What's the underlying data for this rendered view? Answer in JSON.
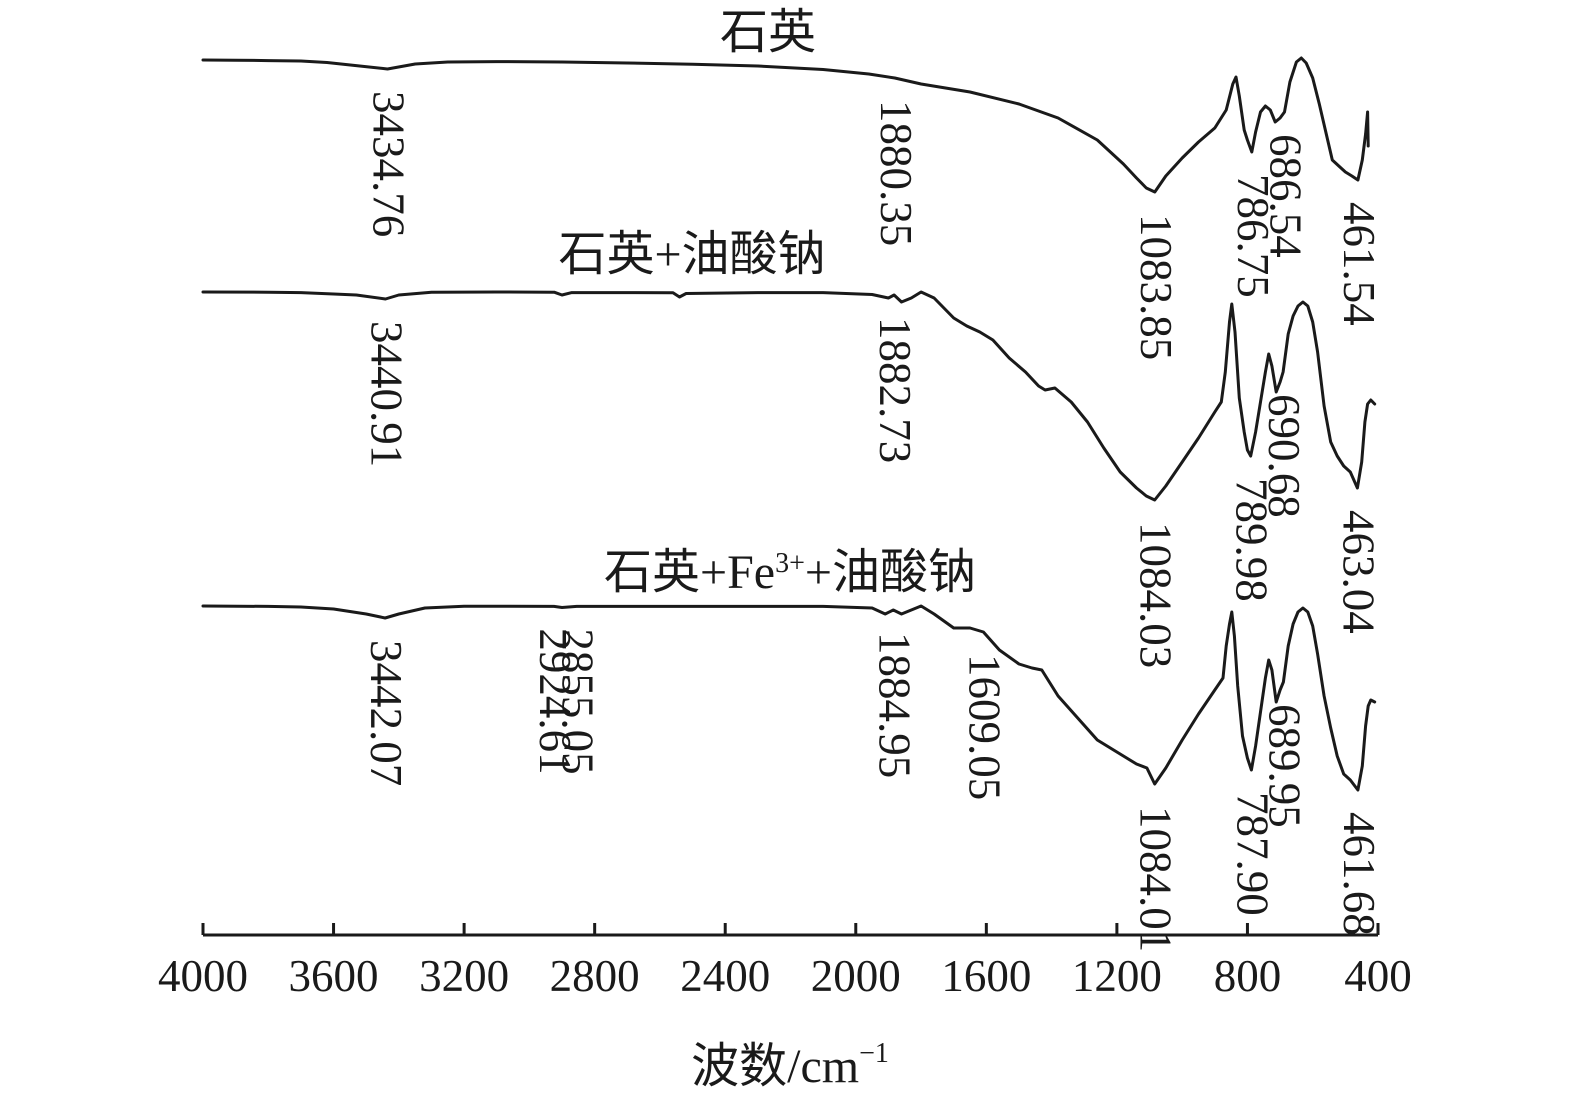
{
  "chart_data": {
    "type": "line",
    "xlabel": "波数/cm",
    "xlabel_exp": "−1",
    "xlim": [
      4000,
      400
    ],
    "x_reversed": true,
    "xticks": [
      "4000",
      "3600",
      "3200",
      "2800",
      "2400",
      "2000",
      "1600",
      "1200",
      "800",
      "400"
    ],
    "series": [
      {
        "name": "石英",
        "points": [
          [
            4000,
            0.0
          ],
          [
            3900,
            0.2
          ],
          [
            3800,
            0.6
          ],
          [
            3700,
            1.0
          ],
          [
            3620,
            2.5
          ],
          [
            3520,
            6.0
          ],
          [
            3434.76,
            9.0
          ],
          [
            3350,
            4.0
          ],
          [
            3250,
            2.0
          ],
          [
            3100,
            1.6
          ],
          [
            2900,
            2.0
          ],
          [
            2700,
            3.0
          ],
          [
            2500,
            4.2
          ],
          [
            2300,
            6.0
          ],
          [
            2100,
            9.5
          ],
          [
            1960,
            14.0
          ],
          [
            1880.35,
            18.0
          ],
          [
            1800,
            24.0
          ],
          [
            1650,
            32.0
          ],
          [
            1500,
            44.0
          ],
          [
            1380,
            58.0
          ],
          [
            1260,
            80.0
          ],
          [
            1180,
            104.0
          ],
          [
            1140,
            118.0
          ],
          [
            1110,
            128.0
          ],
          [
            1083.85,
            132.0
          ],
          [
            1050,
            116.0
          ],
          [
            1000,
            98.0
          ],
          [
            950,
            82.0
          ],
          [
            900,
            68.0
          ],
          [
            865,
            50.0
          ],
          [
            845,
            24.0
          ],
          [
            835,
            17.0
          ],
          [
            825,
            36.0
          ],
          [
            810,
            70.0
          ],
          [
            800,
            80.0
          ],
          [
            786.75,
            92.0
          ],
          [
            775,
            72.0
          ],
          [
            760,
            52.0
          ],
          [
            745,
            46.0
          ],
          [
            730,
            50.0
          ],
          [
            715,
            62.0
          ],
          [
            700,
            58.0
          ],
          [
            686.54,
            52.0
          ],
          [
            670,
            22.0
          ],
          [
            650,
            2.0
          ],
          [
            635,
            -2.0
          ],
          [
            620,
            3.0
          ],
          [
            600,
            18.0
          ],
          [
            580,
            44.0
          ],
          [
            560,
            72.0
          ],
          [
            540,
            100.0
          ],
          [
            520,
            106.0
          ],
          [
            500,
            112.0
          ],
          [
            480,
            116.0
          ],
          [
            461.54,
            120.0
          ],
          [
            448,
            100.0
          ],
          [
            438,
            74.0
          ],
          [
            432,
            52.0
          ],
          [
            430,
            86.0
          ]
        ]
      },
      {
        "name": "石英+油酸钠",
        "points": [
          [
            4000,
            0.0
          ],
          [
            3800,
            0.2
          ],
          [
            3700,
            0.6
          ],
          [
            3600,
            2.0
          ],
          [
            3530,
            3.0
          ],
          [
            3440.91,
            7.0
          ],
          [
            3400,
            3.0
          ],
          [
            3300,
            0.2
          ],
          [
            3100,
            0.0
          ],
          [
            2924,
            0.2
          ],
          [
            2900,
            3.0
          ],
          [
            2870,
            0.6
          ],
          [
            2700,
            0.6
          ],
          [
            2560,
            0.8
          ],
          [
            2540,
            5.0
          ],
          [
            2520,
            1.5
          ],
          [
            2300,
            0.6
          ],
          [
            2100,
            0.6
          ],
          [
            1950,
            2.5
          ],
          [
            1900,
            6.0
          ],
          [
            1882.73,
            3.0
          ],
          [
            1860,
            10.0
          ],
          [
            1830,
            6.0
          ],
          [
            1800,
            0.0
          ],
          [
            1760,
            6.0
          ],
          [
            1700,
            26.0
          ],
          [
            1660,
            34.0
          ],
          [
            1620,
            40.0
          ],
          [
            1580,
            48.0
          ],
          [
            1530,
            66.0
          ],
          [
            1480,
            80.0
          ],
          [
            1440,
            94.0
          ],
          [
            1420,
            98.0
          ],
          [
            1390,
            96.0
          ],
          [
            1340,
            110.0
          ],
          [
            1290,
            130.0
          ],
          [
            1240,
            156.0
          ],
          [
            1190,
            180.0
          ],
          [
            1140,
            196.0
          ],
          [
            1110,
            204.0
          ],
          [
            1084.03,
            208.0
          ],
          [
            1050,
            194.0
          ],
          [
            1000,
            170.0
          ],
          [
            950,
            146.0
          ],
          [
            900,
            120.0
          ],
          [
            880,
            110.0
          ],
          [
            868,
            80.0
          ],
          [
            855,
            30.0
          ],
          [
            848,
            12.0
          ],
          [
            838,
            40.0
          ],
          [
            825,
            106.0
          ],
          [
            810,
            140.0
          ],
          [
            800,
            158.0
          ],
          [
            789.98,
            164.0
          ],
          [
            775,
            140.0
          ],
          [
            760,
            110.0
          ],
          [
            745,
            80.0
          ],
          [
            735,
            62.0
          ],
          [
            725,
            74.0
          ],
          [
            712,
            100.0
          ],
          [
            700,
            90.0
          ],
          [
            690.68,
            80.0
          ],
          [
            675,
            42.0
          ],
          [
            660,
            24.0
          ],
          [
            645,
            14.0
          ],
          [
            630,
            10.0
          ],
          [
            615,
            14.0
          ],
          [
            600,
            30.0
          ],
          [
            585,
            60.0
          ],
          [
            565,
            114.0
          ],
          [
            545,
            150.0
          ],
          [
            525,
            164.0
          ],
          [
            505,
            174.0
          ],
          [
            485,
            180.0
          ],
          [
            463.04,
            196.0
          ],
          [
            450,
            170.0
          ],
          [
            440,
            130.0
          ],
          [
            432,
            112.0
          ],
          [
            422,
            108.0
          ],
          [
            410,
            112.0
          ]
        ]
      },
      {
        "name": "石英+Fe",
        "name_exp": "3+",
        "name_rest": "+油酸钠",
        "points": [
          [
            4000,
            0.0
          ],
          [
            3800,
            0.4
          ],
          [
            3700,
            1.0
          ],
          [
            3600,
            3.0
          ],
          [
            3500,
            8.0
          ],
          [
            3442.07,
            12.0
          ],
          [
            3400,
            8.0
          ],
          [
            3320,
            2.0
          ],
          [
            3200,
            0.2
          ],
          [
            2924.61,
            0.4
          ],
          [
            2900,
            1.5
          ],
          [
            2855.05,
            0.4
          ],
          [
            2700,
            0.4
          ],
          [
            2500,
            0.4
          ],
          [
            2300,
            0.4
          ],
          [
            2100,
            0.4
          ],
          [
            1950,
            2.0
          ],
          [
            1910,
            8.0
          ],
          [
            1884.95,
            4.0
          ],
          [
            1860,
            8.0
          ],
          [
            1830,
            4.0
          ],
          [
            1800,
            0.0
          ],
          [
            1760,
            8.0
          ],
          [
            1700,
            22.0
          ],
          [
            1650,
            22.0
          ],
          [
            1609.05,
            26.0
          ],
          [
            1560,
            44.0
          ],
          [
            1500,
            58.0
          ],
          [
            1460,
            62.0
          ],
          [
            1430,
            64.0
          ],
          [
            1380,
            90.0
          ],
          [
            1320,
            112.0
          ],
          [
            1260,
            134.0
          ],
          [
            1210,
            144.0
          ],
          [
            1180,
            150.0
          ],
          [
            1140,
            158.0
          ],
          [
            1108,
            162.0
          ],
          [
            1084.01,
            178.0
          ],
          [
            1050,
            162.0
          ],
          [
            1000,
            134.0
          ],
          [
            950,
            108.0
          ],
          [
            900,
            84.0
          ],
          [
            875,
            72.0
          ],
          [
            865,
            40.0
          ],
          [
            855,
            18.0
          ],
          [
            848,
            6.0
          ],
          [
            840,
            30.0
          ],
          [
            830,
            80.0
          ],
          [
            815,
            130.0
          ],
          [
            800,
            152.0
          ],
          [
            787.9,
            164.0
          ],
          [
            775,
            140.0
          ],
          [
            760,
            106.0
          ],
          [
            745,
            72.0
          ],
          [
            735,
            54.0
          ],
          [
            725,
            64.0
          ],
          [
            712,
            96.0
          ],
          [
            700,
            84.0
          ],
          [
            689.95,
            76.0
          ],
          [
            675,
            40.0
          ],
          [
            660,
            18.0
          ],
          [
            645,
            6.0
          ],
          [
            630,
            2.0
          ],
          [
            615,
            6.0
          ],
          [
            600,
            20.0
          ],
          [
            585,
            48.0
          ],
          [
            565,
            90.0
          ],
          [
            545,
            122.0
          ],
          [
            525,
            150.0
          ],
          [
            505,
            168.0
          ],
          [
            485,
            174.0
          ],
          [
            461.68,
            184.0
          ],
          [
            448,
            160.0
          ],
          [
            438,
            120.0
          ],
          [
            430,
            100.0
          ],
          [
            422,
            94.0
          ],
          [
            410,
            96.0
          ]
        ]
      }
    ],
    "peak_labels": [
      {
        "series": 0,
        "text": "3434.76",
        "x": 3434.76
      },
      {
        "series": 0,
        "text": "1880.35",
        "x": 1880.35
      },
      {
        "series": 0,
        "text": "1083.85",
        "x": 1083.85
      },
      {
        "series": 0,
        "text": "786.75",
        "x": 786.75
      },
      {
        "series": 0,
        "text": "686.54",
        "x": 686.54
      },
      {
        "series": 0,
        "text": "461.54",
        "x": 461.54
      },
      {
        "series": 1,
        "text": "3440.91",
        "x": 3440.91
      },
      {
        "series": 1,
        "text": "1882.73",
        "x": 1882.73
      },
      {
        "series": 1,
        "text": "1084.03",
        "x": 1084.03
      },
      {
        "series": 1,
        "text": "789.98",
        "x": 789.98
      },
      {
        "series": 1,
        "text": "690.68",
        "x": 690.68
      },
      {
        "series": 1,
        "text": "463.04",
        "x": 463.04
      },
      {
        "series": 2,
        "text": "3442.07",
        "x": 3442.07
      },
      {
        "series": 2,
        "text": "2924.61",
        "x": 2924.61
      },
      {
        "series": 2,
        "text": "2855.05",
        "x": 2855.05
      },
      {
        "series": 2,
        "text": "1884.95",
        "x": 1884.95
      },
      {
        "series": 2,
        "text": "1609.05",
        "x": 1609.05
      },
      {
        "series": 2,
        "text": "1084.01",
        "x": 1084.01
      },
      {
        "series": 2,
        "text": "787.90",
        "x": 787.9
      },
      {
        "series": 2,
        "text": "689.95",
        "x": 689.95
      },
      {
        "series": 2,
        "text": "461.68",
        "x": 461.68
      }
    ]
  }
}
